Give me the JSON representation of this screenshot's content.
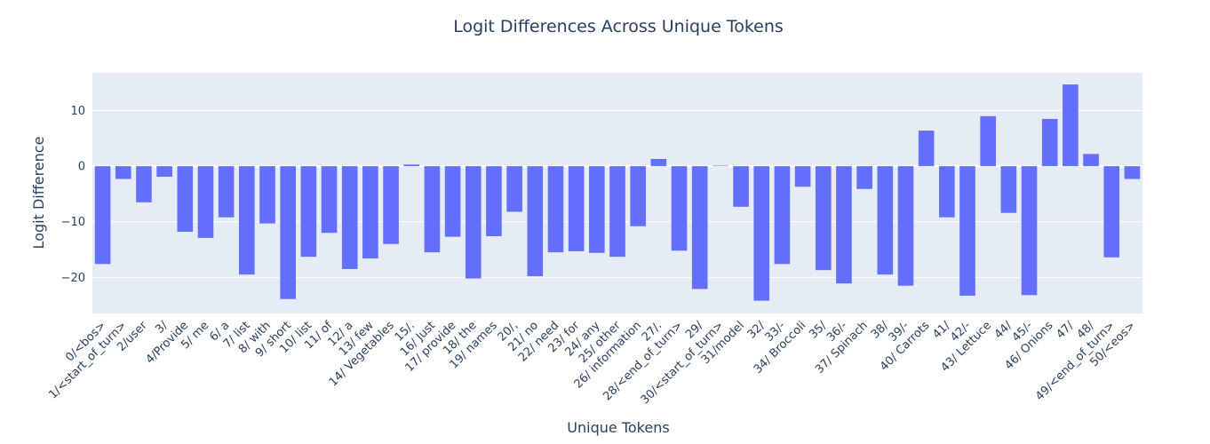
{
  "chart_data": {
    "type": "bar",
    "title": "Logit Differences Across Unique Tokens",
    "xlabel": "Unique Tokens",
    "ylabel": "Logit Difference",
    "ylim": [
      -26.5,
      16.8
    ],
    "yticks": [
      -20,
      -10,
      0,
      10
    ],
    "ytick_labels": [
      "−20",
      "−10",
      "0",
      "10"
    ],
    "grid": true,
    "plot_bg": "#e5ecf6",
    "bar_color": "#636efa",
    "text_color": "#2a3f5f",
    "categories": [
      "0/<bos>",
      "1/<start_of_turn>",
      "2/user",
      "3/",
      "4/Provide",
      "5/ me",
      "6/ a",
      "7/ list",
      "8/ with",
      "9/ short",
      "10/ list",
      "11/ of",
      "12/ a",
      "13/ few",
      "14/ Vegetables",
      "15/.",
      "16/ Just",
      "17/ provide",
      "18/ the",
      "19/ names",
      "20/,",
      "21/ no",
      "22/ need",
      "23/ for",
      "24/ any",
      "25/ other",
      "26/ information",
      "27/.",
      "28/<end_of_turn>",
      "29/",
      "30/<start_of_turn>",
      "31/model",
      "32/",
      "33/-",
      "34/ Broccoli",
      "35/",
      "36/-",
      "37/ Spinach",
      "38/",
      "39/-",
      "40/ Carrots",
      "41/",
      "42/-",
      "43/ Lettuce",
      "44/",
      "45/-",
      "46/ Onions",
      "47/",
      "48/",
      "49/<end_of_turn>",
      "50/<eos>"
    ],
    "values": [
      -17.6,
      -2.3,
      -6.5,
      -1.9,
      -11.8,
      -12.9,
      -9.2,
      -19.5,
      -10.3,
      -23.9,
      -16.3,
      -12.0,
      -18.5,
      -16.6,
      -14.0,
      0.3,
      -15.5,
      -12.7,
      -20.2,
      -12.6,
      -8.2,
      -19.8,
      -15.5,
      -15.3,
      -15.6,
      -16.3,
      -10.8,
      1.3,
      -15.2,
      -22.1,
      0.1,
      -7.3,
      -24.2,
      -17.6,
      -3.7,
      -18.7,
      -21.1,
      -4.1,
      -19.5,
      -21.5,
      6.4,
      -9.2,
      -23.3,
      9.0,
      -8.4,
      -23.2,
      8.5,
      14.7,
      2.2,
      -16.4,
      -2.3
    ]
  }
}
